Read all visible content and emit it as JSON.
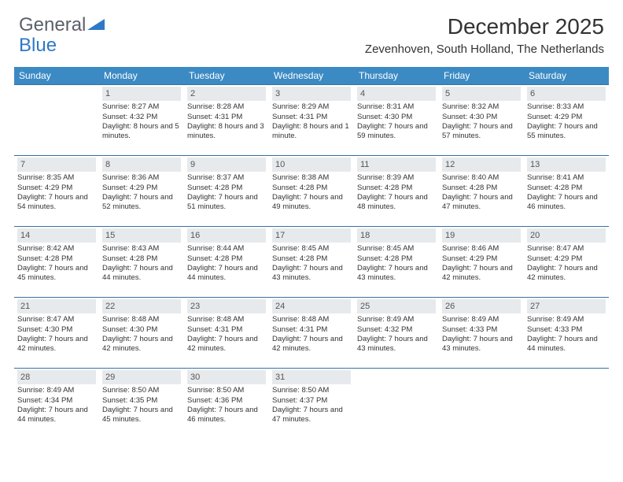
{
  "logo": {
    "part1": "General",
    "part2": "Blue"
  },
  "title": "December 2025",
  "location": "Zevenhoven, South Holland, The Netherlands",
  "colors": {
    "header_bg": "#3b8ac4",
    "header_text": "#ffffff",
    "daybar_bg": "#e7eaec",
    "border": "#3b6fa0",
    "text": "#333333",
    "logo_accent": "#2e79c6"
  },
  "days_of_week": [
    "Sunday",
    "Monday",
    "Tuesday",
    "Wednesday",
    "Thursday",
    "Friday",
    "Saturday"
  ],
  "grid": [
    [
      {
        "n": "",
        "sr": "",
        "ss": "",
        "dl": ""
      },
      {
        "n": "1",
        "sr": "8:27 AM",
        "ss": "4:32 PM",
        "dl": "8 hours and 5 minutes."
      },
      {
        "n": "2",
        "sr": "8:28 AM",
        "ss": "4:31 PM",
        "dl": "8 hours and 3 minutes."
      },
      {
        "n": "3",
        "sr": "8:29 AM",
        "ss": "4:31 PM",
        "dl": "8 hours and 1 minute."
      },
      {
        "n": "4",
        "sr": "8:31 AM",
        "ss": "4:30 PM",
        "dl": "7 hours and 59 minutes."
      },
      {
        "n": "5",
        "sr": "8:32 AM",
        "ss": "4:30 PM",
        "dl": "7 hours and 57 minutes."
      },
      {
        "n": "6",
        "sr": "8:33 AM",
        "ss": "4:29 PM",
        "dl": "7 hours and 55 minutes."
      }
    ],
    [
      {
        "n": "7",
        "sr": "8:35 AM",
        "ss": "4:29 PM",
        "dl": "7 hours and 54 minutes."
      },
      {
        "n": "8",
        "sr": "8:36 AM",
        "ss": "4:29 PM",
        "dl": "7 hours and 52 minutes."
      },
      {
        "n": "9",
        "sr": "8:37 AM",
        "ss": "4:28 PM",
        "dl": "7 hours and 51 minutes."
      },
      {
        "n": "10",
        "sr": "8:38 AM",
        "ss": "4:28 PM",
        "dl": "7 hours and 49 minutes."
      },
      {
        "n": "11",
        "sr": "8:39 AM",
        "ss": "4:28 PM",
        "dl": "7 hours and 48 minutes."
      },
      {
        "n": "12",
        "sr": "8:40 AM",
        "ss": "4:28 PM",
        "dl": "7 hours and 47 minutes."
      },
      {
        "n": "13",
        "sr": "8:41 AM",
        "ss": "4:28 PM",
        "dl": "7 hours and 46 minutes."
      }
    ],
    [
      {
        "n": "14",
        "sr": "8:42 AM",
        "ss": "4:28 PM",
        "dl": "7 hours and 45 minutes."
      },
      {
        "n": "15",
        "sr": "8:43 AM",
        "ss": "4:28 PM",
        "dl": "7 hours and 44 minutes."
      },
      {
        "n": "16",
        "sr": "8:44 AM",
        "ss": "4:28 PM",
        "dl": "7 hours and 44 minutes."
      },
      {
        "n": "17",
        "sr": "8:45 AM",
        "ss": "4:28 PM",
        "dl": "7 hours and 43 minutes."
      },
      {
        "n": "18",
        "sr": "8:45 AM",
        "ss": "4:28 PM",
        "dl": "7 hours and 43 minutes."
      },
      {
        "n": "19",
        "sr": "8:46 AM",
        "ss": "4:29 PM",
        "dl": "7 hours and 42 minutes."
      },
      {
        "n": "20",
        "sr": "8:47 AM",
        "ss": "4:29 PM",
        "dl": "7 hours and 42 minutes."
      }
    ],
    [
      {
        "n": "21",
        "sr": "8:47 AM",
        "ss": "4:30 PM",
        "dl": "7 hours and 42 minutes."
      },
      {
        "n": "22",
        "sr": "8:48 AM",
        "ss": "4:30 PM",
        "dl": "7 hours and 42 minutes."
      },
      {
        "n": "23",
        "sr": "8:48 AM",
        "ss": "4:31 PM",
        "dl": "7 hours and 42 minutes."
      },
      {
        "n": "24",
        "sr": "8:48 AM",
        "ss": "4:31 PM",
        "dl": "7 hours and 42 minutes."
      },
      {
        "n": "25",
        "sr": "8:49 AM",
        "ss": "4:32 PM",
        "dl": "7 hours and 43 minutes."
      },
      {
        "n": "26",
        "sr": "8:49 AM",
        "ss": "4:33 PM",
        "dl": "7 hours and 43 minutes."
      },
      {
        "n": "27",
        "sr": "8:49 AM",
        "ss": "4:33 PM",
        "dl": "7 hours and 44 minutes."
      }
    ],
    [
      {
        "n": "28",
        "sr": "8:49 AM",
        "ss": "4:34 PM",
        "dl": "7 hours and 44 minutes."
      },
      {
        "n": "29",
        "sr": "8:50 AM",
        "ss": "4:35 PM",
        "dl": "7 hours and 45 minutes."
      },
      {
        "n": "30",
        "sr": "8:50 AM",
        "ss": "4:36 PM",
        "dl": "7 hours and 46 minutes."
      },
      {
        "n": "31",
        "sr": "8:50 AM",
        "ss": "4:37 PM",
        "dl": "7 hours and 47 minutes."
      },
      {
        "n": "",
        "sr": "",
        "ss": "",
        "dl": ""
      },
      {
        "n": "",
        "sr": "",
        "ss": "",
        "dl": ""
      },
      {
        "n": "",
        "sr": "",
        "ss": "",
        "dl": ""
      }
    ]
  ],
  "labels": {
    "sunrise": "Sunrise:",
    "sunset": "Sunset:",
    "daylight": "Daylight:"
  }
}
